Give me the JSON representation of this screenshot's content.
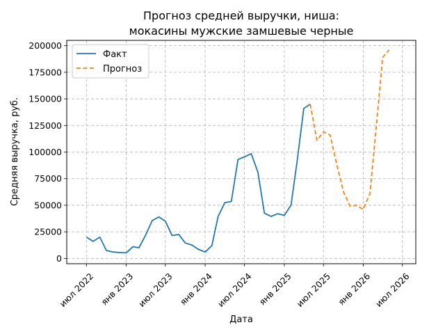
{
  "chart_data": {
    "type": "line",
    "title_lines": [
      "Прогноз средней выручки, ниша:",
      "мокасины мужские замшевые черные"
    ],
    "xlabel": "Дата",
    "ylabel": "Средняя выручка, руб.",
    "x_range": [
      "2022-04-01",
      "2026-09-01"
    ],
    "ylim": [
      -5000,
      205000
    ],
    "x_ticks": [
      {
        "date": "2022-07-01",
        "label": "июл 2022"
      },
      {
        "date": "2023-01-01",
        "label": "янв 2023"
      },
      {
        "date": "2023-07-01",
        "label": "июл 2023"
      },
      {
        "date": "2024-01-01",
        "label": "янв 2024"
      },
      {
        "date": "2024-07-01",
        "label": "июл 2024"
      },
      {
        "date": "2025-01-01",
        "label": "янв 2025"
      },
      {
        "date": "2025-07-01",
        "label": "июл 2025"
      },
      {
        "date": "2026-01-01",
        "label": "янв 2026"
      },
      {
        "date": "2026-07-01",
        "label": "июл 2026"
      }
    ],
    "y_ticks": [
      0,
      25000,
      50000,
      75000,
      100000,
      125000,
      150000,
      175000,
      200000
    ],
    "grid": true,
    "legend_position": "top-left",
    "series": [
      {
        "name": "Факт",
        "style": "solid",
        "color": "#1f77b4",
        "points": [
          {
            "x": "2022-07-01",
            "y": 20000
          },
          {
            "x": "2022-08-01",
            "y": 16000
          },
          {
            "x": "2022-09-01",
            "y": 20000
          },
          {
            "x": "2022-10-01",
            "y": 7500
          },
          {
            "x": "2022-11-01",
            "y": 6000
          },
          {
            "x": "2022-12-01",
            "y": 5500
          },
          {
            "x": "2023-01-01",
            "y": 5200
          },
          {
            "x": "2023-02-01",
            "y": 11000
          },
          {
            "x": "2023-03-01",
            "y": 10000
          },
          {
            "x": "2023-04-01",
            "y": 22000
          },
          {
            "x": "2023-05-01",
            "y": 35500
          },
          {
            "x": "2023-06-01",
            "y": 39000
          },
          {
            "x": "2023-07-01",
            "y": 35000
          },
          {
            "x": "2023-08-01",
            "y": 21500
          },
          {
            "x": "2023-09-01",
            "y": 22500
          },
          {
            "x": "2023-10-01",
            "y": 14500
          },
          {
            "x": "2023-11-01",
            "y": 12500
          },
          {
            "x": "2023-12-01",
            "y": 8500
          },
          {
            "x": "2024-01-01",
            "y": 6000
          },
          {
            "x": "2024-02-01",
            "y": 12000
          },
          {
            "x": "2024-03-01",
            "y": 39500
          },
          {
            "x": "2024-04-01",
            "y": 52500
          },
          {
            "x": "2024-05-01",
            "y": 53500
          },
          {
            "x": "2024-06-01",
            "y": 93000
          },
          {
            "x": "2024-07-01",
            "y": 95500
          },
          {
            "x": "2024-08-01",
            "y": 98500
          },
          {
            "x": "2024-09-01",
            "y": 81000
          },
          {
            "x": "2024-10-01",
            "y": 42500
          },
          {
            "x": "2024-11-01",
            "y": 39500
          },
          {
            "x": "2024-12-01",
            "y": 42000
          },
          {
            "x": "2025-01-01",
            "y": 40500
          },
          {
            "x": "2025-02-01",
            "y": 50000
          },
          {
            "x": "2025-03-01",
            "y": 91000
          },
          {
            "x": "2025-04-01",
            "y": 141000
          },
          {
            "x": "2025-05-01",
            "y": 145000
          }
        ]
      },
      {
        "name": "Прогноз",
        "style": "dashed",
        "color": "#ff7f0e",
        "points": [
          {
            "x": "2025-05-01",
            "y": 145000
          },
          {
            "x": "2025-06-01",
            "y": 111000
          },
          {
            "x": "2025-07-01",
            "y": 119000
          },
          {
            "x": "2025-08-01",
            "y": 116000
          },
          {
            "x": "2025-09-01",
            "y": 88000
          },
          {
            "x": "2025-10-01",
            "y": 63000
          },
          {
            "x": "2025-11-01",
            "y": 49000
          },
          {
            "x": "2025-12-01",
            "y": 50000
          },
          {
            "x": "2026-01-01",
            "y": 46000
          },
          {
            "x": "2026-02-01",
            "y": 61000
          },
          {
            "x": "2026-03-01",
            "y": 121000
          },
          {
            "x": "2026-04-01",
            "y": 189000
          },
          {
            "x": "2026-05-01",
            "y": 196000
          }
        ]
      }
    ]
  }
}
